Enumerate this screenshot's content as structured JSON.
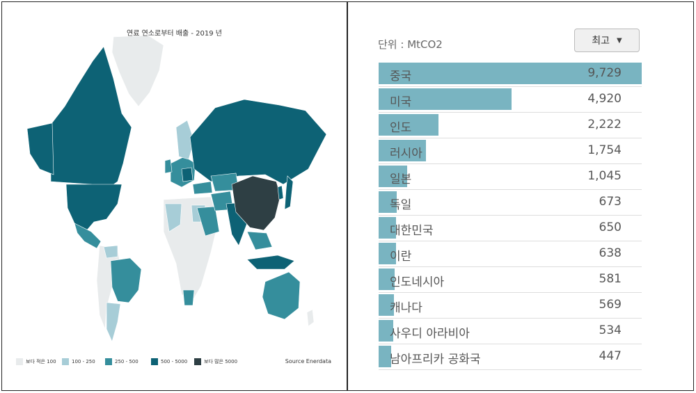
{
  "colors": {
    "less_100": "#e8ebec",
    "r100_250": "#a7cdd7",
    "r250_500": "#358e9c",
    "r500_5000": "#0d6275",
    "more_5000": "#2e3f44",
    "bar": "#79b4c1"
  },
  "map": {
    "title": "연료 연소로부터 배출 - 2019 년",
    "source": "Source Enerdata",
    "legend": [
      {
        "label": "보다 적은 100",
        "color": "#e8ebec"
      },
      {
        "label": "100 - 250",
        "color": "#a7cdd7"
      },
      {
        "label": "250 - 500",
        "color": "#358e9c"
      },
      {
        "label": "500 - 5000",
        "color": "#0d6275"
      },
      {
        "label": "보다 많은 5000",
        "color": "#2e3f44"
      }
    ]
  },
  "panel": {
    "unit": "단위 : MtCO2",
    "dropdown": "최고"
  },
  "chart_data": {
    "type": "bar",
    "orientation": "horizontal",
    "categories": [
      "중국",
      "미국",
      "인도",
      "러시아",
      "일본",
      "독일",
      "대한민국",
      "이란",
      "인도네시아",
      "캐나다",
      "사우디 아라비아",
      "남아프리카 공화국"
    ],
    "values": [
      9729,
      4920,
      2222,
      1754,
      1045,
      673,
      650,
      638,
      581,
      569,
      534,
      447
    ],
    "value_labels": [
      "9,729",
      "4,920",
      "2,222",
      "1,754",
      "1,045",
      "673",
      "650",
      "638",
      "581",
      "569",
      "534",
      "447"
    ],
    "xlim": [
      0,
      9729
    ]
  }
}
